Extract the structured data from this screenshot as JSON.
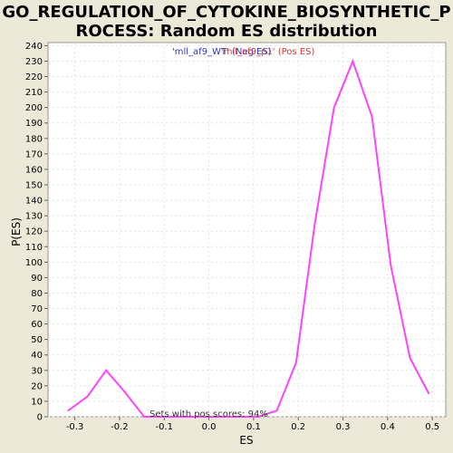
{
  "colors": {
    "background": "#ece9d8",
    "plot_background": "#ffffff",
    "line": "#ff44ff",
    "legend_neg": "#3333cc",
    "legend_pos": "#dd3333",
    "grid": "#e4e4e4"
  },
  "chart_data": {
    "type": "line",
    "title_lines": [
      "GO_REGULATION_OF_CYTOKINE_BIOSYNTHETIC_P",
      "ROCESS: Random ES distribution"
    ],
    "xlabel": "ES",
    "ylabel": "P(ES)",
    "xlim": [
      -0.36,
      0.53
    ],
    "ylim": [
      0,
      242
    ],
    "x_ticks": [
      -0.3,
      -0.2,
      -0.1,
      0.0,
      0.1,
      0.2,
      0.3,
      0.4,
      0.5
    ],
    "x_tick_labels": [
      "-0.3",
      "-0.2",
      "-0.1",
      "0.0",
      "0.1",
      "0.2",
      "0.3",
      "0.4",
      "0.5"
    ],
    "y_ticks": [
      0,
      10,
      20,
      30,
      40,
      50,
      60,
      70,
      80,
      90,
      100,
      110,
      120,
      130,
      140,
      150,
      160,
      170,
      180,
      190,
      200,
      210,
      220,
      230,
      240
    ],
    "y_tick_labels": [
      "0",
      "10",
      "20",
      "30",
      "40",
      "50",
      "60",
      "70",
      "80",
      "90",
      "100",
      "110",
      "120",
      "130",
      "140",
      "150",
      "160",
      "170",
      "180",
      "190",
      "200",
      "210",
      "220",
      "230",
      "240"
    ],
    "grid": true,
    "legend": [
      {
        "text": "'mll_af9_WT' (Neg ES)",
        "color": "#3333cc"
      },
      {
        "text": "'mll_af9_p1' (Pos ES)",
        "color": "#dd3333"
      }
    ],
    "annotation": "Sets with pos scores: 94%",
    "series": [
      {
        "x": [
          -0.315,
          -0.272,
          -0.23,
          -0.188,
          -0.145,
          -0.103,
          -0.06,
          -0.018,
          0.025,
          0.067,
          0.11,
          0.152,
          0.195,
          0.237,
          0.28,
          0.322,
          0.365,
          0.407,
          0.45,
          0.492
        ],
        "y": [
          4,
          13,
          30,
          16,
          0,
          0,
          0,
          0,
          0,
          0,
          0,
          4,
          35,
          125,
          200,
          230,
          194,
          98,
          38,
          15
        ]
      }
    ]
  }
}
